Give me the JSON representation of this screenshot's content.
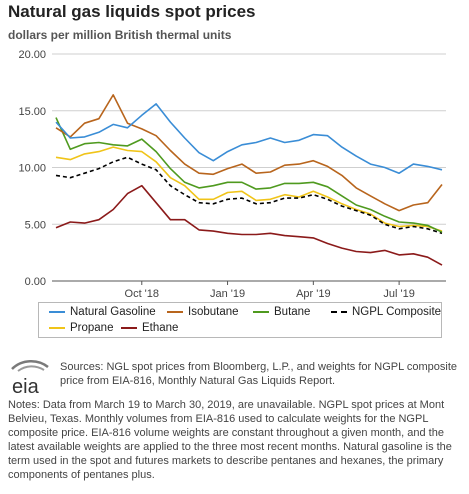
{
  "header": {
    "title": "Natural gas liquids spot prices",
    "subtitle": "dollars per million British thermal units"
  },
  "colors": {
    "natural_gasoline": "#3a8dd6",
    "isobutane": "#b8651d",
    "butane": "#4f9a1f",
    "ngpl_composite": "#000000",
    "propane": "#f0c419",
    "ethane": "#8b1a1a",
    "gridline": "#cfcfcf",
    "axis": "#555555"
  },
  "chart_data": {
    "type": "line",
    "ylim": [
      0,
      20
    ],
    "yticks": [
      "0.00",
      "5.00",
      "10.00",
      "15.00",
      "20.00"
    ],
    "xticks": [
      "Oct '18",
      "Jan '19",
      "Apr '19",
      "Jul '19"
    ],
    "grid": "horizontal",
    "legend_position": "bottom",
    "x": [
      "2018-07",
      "2018-07",
      "2018-08",
      "2018-08",
      "2018-09",
      "2018-09",
      "2018-10",
      "2018-10",
      "2018-11",
      "2018-11",
      "2018-12",
      "2018-12",
      "2019-01",
      "2019-01",
      "2019-02",
      "2019-02",
      "2019-03",
      "2019-03",
      "2019-04",
      "2019-04",
      "2019-05",
      "2019-05",
      "2019-06",
      "2019-06",
      "2019-07",
      "2019-07",
      "2019-08",
      "2019-08"
    ],
    "series": [
      {
        "name": "Natural Gasoline",
        "color_key": "natural_gasoline",
        "dash": false,
        "values": [
          14.0,
          12.6,
          12.7,
          13.1,
          13.8,
          13.5,
          14.6,
          15.6,
          14.0,
          12.6,
          11.3,
          10.6,
          11.4,
          12.0,
          12.2,
          12.6,
          12.2,
          12.4,
          12.9,
          12.8,
          11.8,
          11.0,
          10.3,
          10.0,
          9.5,
          10.3,
          10.1,
          9.8
        ]
      },
      {
        "name": "Isobutane",
        "color_key": "isobutane",
        "dash": false,
        "values": [
          13.5,
          12.7,
          13.9,
          14.3,
          16.4,
          13.9,
          13.4,
          12.8,
          11.5,
          10.3,
          9.5,
          9.4,
          9.9,
          10.3,
          9.5,
          9.6,
          10.2,
          10.3,
          10.6,
          10.1,
          9.3,
          8.2,
          7.5,
          6.8,
          6.2,
          6.7,
          6.9,
          8.5
        ]
      },
      {
        "name": "Butane",
        "color_key": "butane",
        "dash": false,
        "values": [
          14.4,
          11.6,
          12.1,
          12.2,
          12.0,
          11.9,
          12.5,
          11.4,
          9.9,
          8.7,
          8.2,
          8.4,
          8.7,
          8.7,
          8.1,
          8.2,
          8.6,
          8.6,
          8.7,
          8.3,
          7.5,
          6.7,
          6.3,
          5.7,
          5.2,
          5.1,
          4.9,
          4.3
        ]
      },
      {
        "name": "NGPL Composite",
        "color_key": "ngpl_composite",
        "dash": true,
        "values": [
          9.3,
          9.1,
          9.5,
          9.9,
          10.5,
          10.9,
          10.3,
          9.8,
          8.4,
          7.6,
          6.9,
          6.8,
          7.2,
          7.3,
          6.8,
          6.9,
          7.3,
          7.3,
          7.6,
          7.2,
          6.6,
          6.2,
          5.8,
          5.0,
          4.6,
          4.8,
          4.6,
          4.2
        ]
      },
      {
        "name": "Propane",
        "color_key": "propane",
        "dash": false,
        "values": [
          10.9,
          10.7,
          11.2,
          11.4,
          11.8,
          11.5,
          11.4,
          10.5,
          9.1,
          8.4,
          7.2,
          7.2,
          7.8,
          7.9,
          7.1,
          7.2,
          7.6,
          7.4,
          7.9,
          7.4,
          6.8,
          6.3,
          5.9,
          5.1,
          4.8,
          4.9,
          4.8,
          4.4
        ]
      },
      {
        "name": "Ethane",
        "color_key": "ethane",
        "dash": false,
        "values": [
          4.7,
          5.2,
          5.1,
          5.4,
          6.3,
          7.7,
          8.4,
          6.9,
          5.4,
          5.4,
          4.5,
          4.4,
          4.2,
          4.1,
          4.1,
          4.2,
          4.0,
          3.9,
          3.8,
          3.3,
          2.9,
          2.6,
          2.5,
          2.7,
          2.3,
          2.4,
          2.1,
          1.4
        ]
      }
    ]
  },
  "legend": {
    "items": [
      {
        "label": "Natural Gasoline"
      },
      {
        "label": "Isobutane"
      },
      {
        "label": "Butane"
      },
      {
        "label": "NGPL Composite"
      },
      {
        "label": "Propane"
      },
      {
        "label": "Ethane"
      }
    ]
  },
  "footer": {
    "logo_text": "eia",
    "sources": "Sources: NGL spot prices from Bloomberg, L.P., and weights for NGPL composite price from EIA-816, Monthly Natural Gas Liquids Report.",
    "notes": "Notes: Data from March 19 to March 30, 2019, are unavailable. NGPL spot prices at Mont Belvieu, Texas. Monthly volumes from EIA-816 used to calculate weights for the NGPL composite price. EIA-816 volume weights are constant throughout a given month, and the latest available weights are applied to the three most recent months. Natural gasoline is the term used in the spot and futures markets to describe pentanes and hexanes, the primary components of pentanes plus."
  }
}
